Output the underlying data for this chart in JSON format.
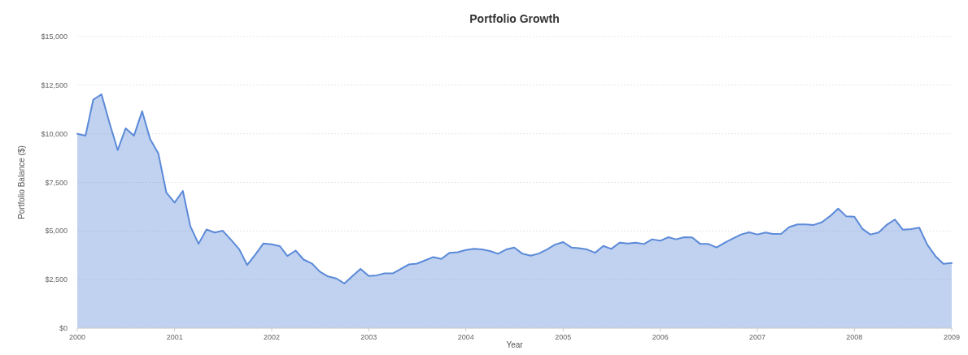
{
  "chart_data": {
    "type": "area",
    "title": "Portfolio Growth",
    "xlabel": "Year",
    "ylabel": "Portfolio Balance ($)",
    "x": [
      "2000-01",
      "2000-02",
      "2000-03",
      "2000-04",
      "2000-05",
      "2000-06",
      "2000-07",
      "2000-08",
      "2000-09",
      "2000-10",
      "2000-11",
      "2000-12",
      "2001-01",
      "2001-02",
      "2001-03",
      "2001-04",
      "2001-05",
      "2001-06",
      "2001-07",
      "2001-08",
      "2001-09",
      "2001-10",
      "2001-11",
      "2001-12",
      "2002-01",
      "2002-02",
      "2002-03",
      "2002-04",
      "2002-05",
      "2002-06",
      "2002-07",
      "2002-08",
      "2002-09",
      "2002-10",
      "2002-11",
      "2002-12",
      "2003-01",
      "2003-02",
      "2003-03",
      "2003-04",
      "2003-05",
      "2003-06",
      "2003-07",
      "2003-08",
      "2003-09",
      "2003-10",
      "2003-11",
      "2003-12",
      "2004-01",
      "2004-02",
      "2004-03",
      "2004-04",
      "2004-05",
      "2004-06",
      "2004-07",
      "2004-08",
      "2004-09",
      "2004-10",
      "2004-11",
      "2004-12",
      "2005-01",
      "2005-02",
      "2005-03",
      "2005-04",
      "2005-05",
      "2005-06",
      "2005-07",
      "2005-08",
      "2005-09",
      "2005-10",
      "2005-11",
      "2005-12",
      "2006-01",
      "2006-02",
      "2006-03",
      "2006-04",
      "2006-05",
      "2006-06",
      "2006-07",
      "2006-08",
      "2006-09",
      "2006-10",
      "2006-11",
      "2006-12",
      "2007-01",
      "2007-02",
      "2007-03",
      "2007-04",
      "2007-05",
      "2007-06",
      "2007-07",
      "2007-08",
      "2007-09",
      "2007-10",
      "2007-11",
      "2007-12",
      "2008-01",
      "2008-02",
      "2008-03",
      "2008-04",
      "2008-05",
      "2008-06",
      "2008-07",
      "2008-08",
      "2008-09",
      "2008-10",
      "2008-11",
      "2008-12",
      "2009-01"
    ],
    "series": [
      {
        "color": "#5b8ad8",
        "values": [
          10000,
          9900,
          11750,
          12030,
          10560,
          9160,
          10280,
          9900,
          11160,
          9720,
          8980,
          6970,
          6460,
          7060,
          5250,
          4340,
          5080,
          4920,
          5010,
          4550,
          4060,
          3250,
          3800,
          4360,
          4310,
          4220,
          3710,
          3990,
          3530,
          3330,
          2910,
          2660,
          2560,
          2300,
          2680,
          3050,
          2680,
          2720,
          2820,
          2820,
          3050,
          3280,
          3320,
          3490,
          3660,
          3560,
          3880,
          3910,
          4020,
          4080,
          4050,
          3970,
          3830,
          4050,
          4150,
          3830,
          3730,
          3840,
          4050,
          4300,
          4430,
          4150,
          4120,
          4050,
          3880,
          4230,
          4080,
          4400,
          4360,
          4400,
          4330,
          4570,
          4500,
          4680,
          4570,
          4680,
          4670,
          4330,
          4330,
          4150,
          4400,
          4610,
          4820,
          4930,
          4820,
          4920,
          4850,
          4860,
          5200,
          5340,
          5340,
          5310,
          5450,
          5760,
          6150,
          5760,
          5730,
          5100,
          4820,
          4920,
          5310,
          5590,
          5070,
          5100,
          5170,
          4300,
          3700,
          3310,
          3350
        ]
      }
    ],
    "xlim": [
      "2000-01",
      "2009-01"
    ],
    "xticks": [
      {
        "value": "2000-01",
        "label": "2000"
      },
      {
        "value": "2001-01",
        "label": "2001"
      },
      {
        "value": "2002-01",
        "label": "2002"
      },
      {
        "value": "2003-01",
        "label": "2003"
      },
      {
        "value": "2004-01",
        "label": "2004"
      },
      {
        "value": "2005-01",
        "label": "2005"
      },
      {
        "value": "2006-01",
        "label": "2006"
      },
      {
        "value": "2007-01",
        "label": "2007"
      },
      {
        "value": "2008-01",
        "label": "2008"
      },
      {
        "value": "2009-01",
        "label": "2009"
      }
    ],
    "ylim": [
      0,
      15000
    ],
    "yticks": [
      {
        "value": 0,
        "label": "$0"
      },
      {
        "value": 2500,
        "label": "$2,500"
      },
      {
        "value": 5000,
        "label": "$5,000"
      },
      {
        "value": 7500,
        "label": "$7,500"
      },
      {
        "value": 10000,
        "label": "$10,000"
      },
      {
        "value": 12500,
        "label": "$12,500"
      },
      {
        "value": 15000,
        "label": "$15,000"
      }
    ],
    "grid": "y"
  }
}
